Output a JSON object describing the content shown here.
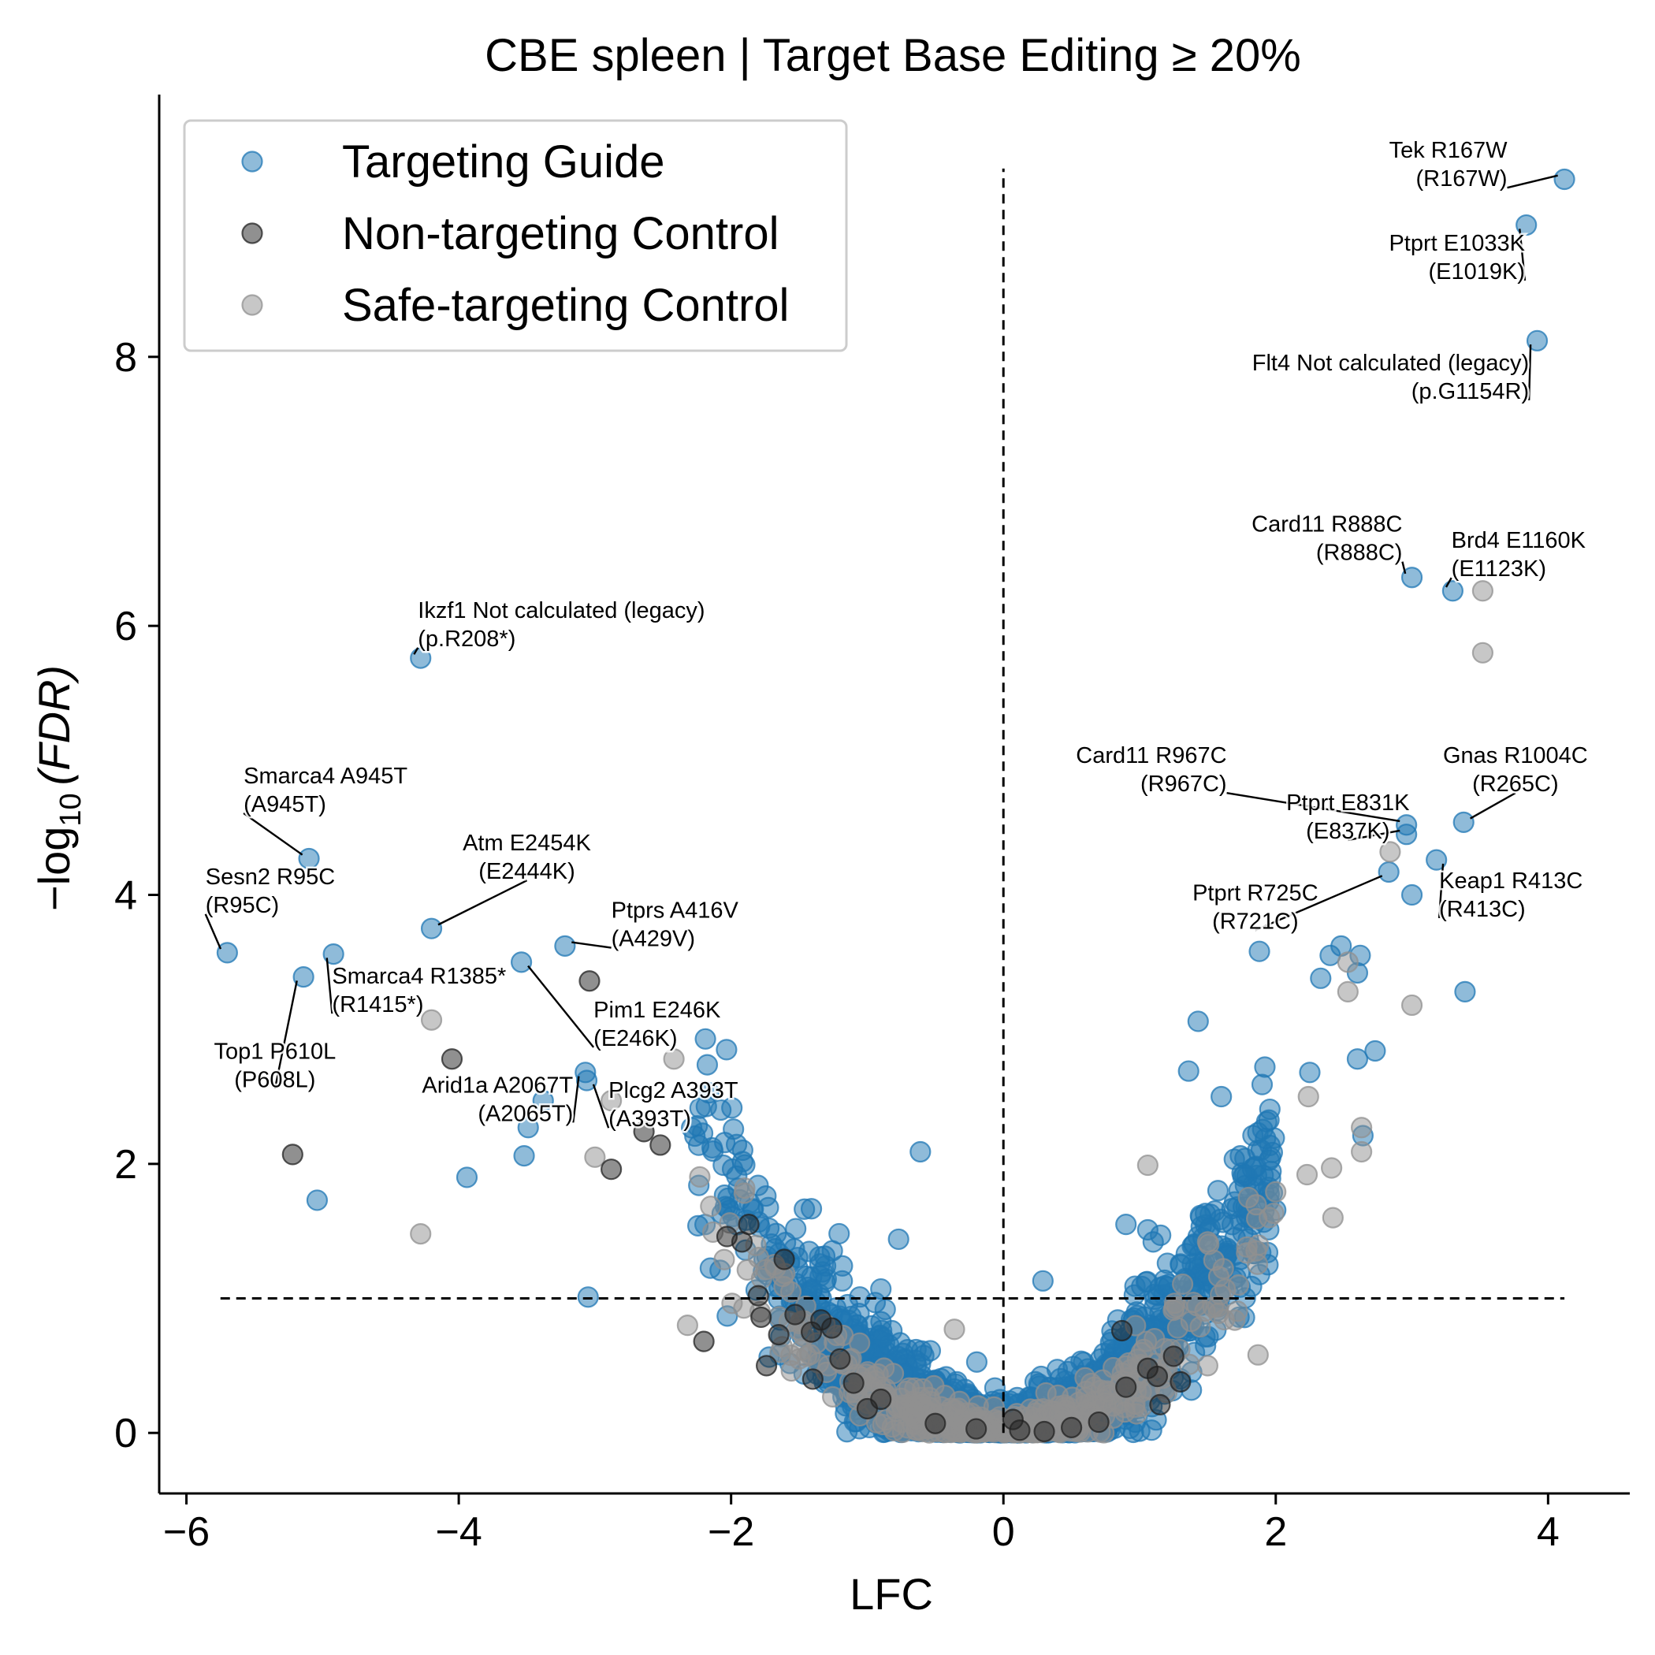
{
  "chart_data": {
    "type": "scatter",
    "title": "CBE spleen | Target Base Editing ≥ 20%",
    "xlabel": "LFC",
    "ylabel_prefix": "−log",
    "ylabel_sub": "10",
    "ylabel_paren": "(FDR)",
    "xlim": [
      -6.2,
      4.6
    ],
    "ylim": [
      -0.45,
      9.95
    ],
    "xticks": [
      -6,
      -4,
      -2,
      0,
      2,
      4
    ],
    "xtick_labels": [
      "−6",
      "−4",
      "−2",
      "0",
      "2",
      "4"
    ],
    "yticks": [
      0,
      2,
      4,
      6,
      8
    ],
    "ytick_labels": [
      "0",
      "2",
      "4",
      "6",
      "8"
    ],
    "threshold_y": 1.0,
    "threshold_x": 0.0,
    "colors": {
      "targeting": "#1f77b4",
      "nontargeting": "#222222",
      "safe": "#909090"
    },
    "legend": {
      "position": "upper-left",
      "items": [
        {
          "key": "targeting",
          "label": "Targeting Guide"
        },
        {
          "key": "nontargeting",
          "label": "Non-targeting Control"
        },
        {
          "key": "safe",
          "label": "Safe-targeting Control"
        }
      ]
    },
    "series": [
      {
        "key": "targeting",
        "name": "Targeting Guide",
        "points": [
          [
            4.12,
            9.32
          ],
          [
            3.84,
            8.98
          ],
          [
            3.92,
            8.12
          ],
          [
            3.0,
            6.36
          ],
          [
            3.3,
            6.26
          ],
          [
            2.96,
            4.52
          ],
          [
            2.96,
            4.45
          ],
          [
            3.38,
            4.54
          ],
          [
            3.18,
            4.26
          ],
          [
            2.83,
            4.17
          ],
          [
            3.0,
            4.0
          ],
          [
            -5.1,
            4.27
          ],
          [
            -4.2,
            3.75
          ],
          [
            -3.22,
            3.62
          ],
          [
            -4.92,
            3.56
          ],
          [
            -5.7,
            3.57
          ],
          [
            -3.54,
            3.5
          ],
          [
            -5.14,
            3.39
          ],
          [
            -4.28,
            5.76
          ],
          [
            -3.07,
            2.68
          ],
          [
            -3.06,
            2.62
          ],
          [
            -3.49,
            2.27
          ],
          [
            -3.38,
            2.47
          ],
          [
            -3.52,
            2.06
          ],
          [
            -3.94,
            1.9
          ],
          [
            -5.04,
            1.73
          ],
          [
            -0.61,
            2.09
          ],
          [
            -0.77,
            1.44
          ],
          [
            -3.05,
            1.01
          ],
          [
            1.06,
            1.51
          ],
          [
            1.43,
            3.06
          ],
          [
            1.36,
            2.69
          ],
          [
            3.39,
            3.28
          ],
          [
            2.4,
            3.55
          ],
          [
            2.48,
            3.62
          ],
          [
            2.62,
            3.55
          ],
          [
            1.88,
            3.58
          ],
          [
            2.33,
            3.38
          ],
          [
            2.6,
            3.42
          ],
          [
            1.92,
            2.72
          ],
          [
            2.25,
            2.68
          ],
          [
            1.9,
            2.59
          ],
          [
            1.74,
            2.06
          ],
          [
            1.6,
            2.5
          ],
          [
            2.6,
            2.78
          ],
          [
            2.73,
            2.84
          ],
          [
            2.64,
            2.21
          ],
          [
            1.1,
            1.42
          ],
          [
            0.9,
            1.55
          ],
          [
            0.29,
            1.13
          ],
          [
            0.22,
            0.05
          ],
          [
            0.14,
            0.06
          ],
          [
            -0.4,
            0.04
          ],
          [
            -0.9,
            1.07
          ],
          [
            -1.6,
            1.1
          ]
        ],
        "cloud": {
          "a": 0.45,
          "b": 0.32,
          "spread": 0.28,
          "count": 1700
        }
      },
      {
        "key": "nontargeting",
        "name": "Non-targeting Control",
        "points": [
          [
            -5.22,
            2.07
          ],
          [
            -4.05,
            2.78
          ],
          [
            -3.04,
            3.36
          ],
          [
            -2.88,
            1.96
          ],
          [
            -2.52,
            2.14
          ],
          [
            -2.64,
            2.24
          ],
          [
            -1.87,
            1.55
          ],
          [
            -1.92,
            1.42
          ],
          [
            -2.03,
            1.46
          ],
          [
            -1.61,
            1.29
          ],
          [
            -1.8,
            1.02
          ],
          [
            -1.78,
            0.86
          ],
          [
            -1.53,
            0.88
          ],
          [
            -1.34,
            0.84
          ],
          [
            -1.41,
            0.75
          ],
          [
            -1.26,
            0.78
          ],
          [
            -1.2,
            0.55
          ],
          [
            -1.65,
            0.73
          ],
          [
            -2.2,
            0.68
          ],
          [
            -1.74,
            0.5
          ],
          [
            -1.4,
            0.4
          ],
          [
            -1.1,
            0.37
          ],
          [
            -0.9,
            0.25
          ],
          [
            -1.0,
            0.18
          ],
          [
            0.87,
            0.76
          ],
          [
            1.06,
            0.48
          ],
          [
            1.25,
            0.57
          ],
          [
            1.13,
            0.42
          ],
          [
            1.3,
            0.38
          ],
          [
            0.9,
            0.34
          ],
          [
            1.15,
            0.21
          ],
          [
            0.07,
            0.1
          ],
          [
            0.12,
            0.02
          ],
          [
            -0.2,
            0.03
          ],
          [
            0.5,
            0.04
          ],
          [
            0.7,
            0.08
          ],
          [
            -0.5,
            0.07
          ],
          [
            0.3,
            0.01
          ]
        ]
      },
      {
        "key": "safe",
        "name": "Safe-targeting Control",
        "points": [
          [
            3.52,
            6.26
          ],
          [
            3.52,
            5.8
          ],
          [
            2.84,
            4.32
          ],
          [
            3.0,
            3.18
          ],
          [
            2.53,
            3.5
          ],
          [
            2.53,
            3.28
          ],
          [
            -4.2,
            3.07
          ],
          [
            -4.28,
            1.48
          ],
          [
            -3.0,
            2.05
          ],
          [
            -2.42,
            2.78
          ],
          [
            -2.88,
            2.47
          ],
          [
            -1.9,
            1.82
          ],
          [
            -2.32,
            0.8
          ],
          [
            -1.64,
            0.6
          ],
          [
            -0.36,
            0.77
          ],
          [
            1.06,
            1.99
          ],
          [
            2.63,
            2.27
          ],
          [
            2.63,
            2.09
          ],
          [
            2.41,
            1.97
          ],
          [
            2.23,
            1.92
          ],
          [
            2.42,
            1.6
          ],
          [
            1.87,
            0.58
          ],
          [
            2.24,
            2.5
          ],
          [
            1.8,
            1.75
          ],
          [
            1.5,
            1.42
          ],
          [
            1.28,
            0.78
          ],
          [
            1.03,
            0.62
          ],
          [
            0.92,
            0.52
          ],
          [
            0.6,
            0.41
          ],
          [
            0.4,
            0.28
          ],
          [
            0.2,
            0.12
          ],
          [
            -0.2,
            0.1
          ],
          [
            -0.6,
            0.21
          ],
          [
            -0.9,
            0.34
          ],
          [
            -1.1,
            0.3
          ],
          [
            -1.3,
            0.45
          ],
          [
            -1.5,
            0.55
          ],
          [
            1.2,
            0.3
          ],
          [
            1.5,
            0.5
          ],
          [
            0.75,
            0.22
          ]
        ],
        "cloud": {
          "a": 0.35,
          "b": 0.25,
          "spread": 0.18,
          "count": 420
        }
      }
    ],
    "annotations": [
      {
        "line1": "Tek R167W",
        "line2": "(R167W)",
        "point": [
          4.12,
          9.32
        ],
        "text": [
          3.7,
          9.48
        ],
        "align": "end"
      },
      {
        "line1": "Ptprt E1033K",
        "line2": "(E1019K)",
        "point": [
          3.84,
          8.98
        ],
        "text": [
          3.83,
          8.79
        ],
        "align": "end"
      },
      {
        "line1": "Flt4 Not calculated (legacy)",
        "line2": "(p.G1154R)",
        "point": [
          3.92,
          8.12
        ],
        "text": [
          3.86,
          7.9
        ],
        "align": "end"
      },
      {
        "line1": "Card11 R888C",
        "line2": "(R888C)",
        "point": [
          3.0,
          6.36
        ],
        "text": [
          2.93,
          6.7
        ],
        "align": "end"
      },
      {
        "line1": "Brd4 E1160K",
        "line2": "(E1123K)",
        "point": [
          3.3,
          6.26
        ],
        "text": [
          3.29,
          6.58
        ],
        "align": "start"
      },
      {
        "line1": "Ikzf1 Not calculated (legacy)",
        "line2": "(p.R208*)",
        "point": [
          -4.28,
          5.76
        ],
        "text": [
          -4.3,
          6.06
        ],
        "align": "start"
      },
      {
        "line1": "Gnas R1004C",
        "line2": "(R265C)",
        "point": [
          3.38,
          4.54
        ],
        "text": [
          3.76,
          4.98
        ],
        "align": "middle"
      },
      {
        "line1": "Card11 R967C",
        "line2": "(R967C)",
        "point": [
          2.96,
          4.52
        ],
        "text": [
          1.64,
          4.98
        ],
        "align": "end"
      },
      {
        "line1": "Ptprt E831K",
        "line2": "(E837K)",
        "point": [
          2.96,
          4.45
        ],
        "text": [
          2.53,
          4.63
        ],
        "align": "middle"
      },
      {
        "line1": "Keap1 R413C",
        "line2": "(R413C)",
        "point": [
          3.18,
          4.26
        ],
        "text": [
          3.2,
          4.05
        ],
        "align": "start"
      },
      {
        "line1": "Ptprt R725C",
        "line2": "(R721C)",
        "point": [
          2.83,
          4.17
        ],
        "text": [
          1.85,
          3.96
        ],
        "align": "middle"
      },
      {
        "line1": "Smarca4 A945T",
        "line2": "(A945T)",
        "point": [
          -5.1,
          4.27
        ],
        "text": [
          -5.58,
          4.83
        ],
        "align": "start"
      },
      {
        "line1": "Atm E2454K",
        "line2": "(E2444K)",
        "point": [
          -4.2,
          3.75
        ],
        "text": [
          -3.5,
          4.33
        ],
        "align": "middle"
      },
      {
        "line1": "Sesn2 R95C",
        "line2": "(R95C)",
        "point": [
          -5.7,
          3.57
        ],
        "text": [
          -5.86,
          4.08
        ],
        "align": "start"
      },
      {
        "line1": "Ptprs A416V",
        "line2": "(A429V)",
        "point": [
          -3.22,
          3.62
        ],
        "text": [
          -2.88,
          3.83
        ],
        "align": "start"
      },
      {
        "line1": "Smarca4 R1385*",
        "line2": "(R1415*)",
        "point": [
          -4.92,
          3.56
        ],
        "text": [
          -4.93,
          3.34
        ],
        "align": "start"
      },
      {
        "line1": "Pim1 E246K",
        "line2": "(E246K)",
        "point": [
          -3.54,
          3.5
        ],
        "text": [
          -3.01,
          3.09
        ],
        "align": "start"
      },
      {
        "line1": "Top1 P610L",
        "line2": "(P608L)",
        "point": [
          -5.14,
          3.39
        ],
        "text": [
          -5.35,
          2.78
        ],
        "align": "middle"
      },
      {
        "line1": "Arid1a A2067T",
        "line2": "(A2065T)",
        "point": [
          -3.07,
          2.68
        ],
        "text": [
          -3.16,
          2.53
        ],
        "align": "end"
      },
      {
        "line1": "Plcg2 A393T",
        "line2": "(A393T)",
        "point": [
          -3.06,
          2.62
        ],
        "text": [
          -2.9,
          2.49
        ],
        "align": "start"
      }
    ]
  }
}
